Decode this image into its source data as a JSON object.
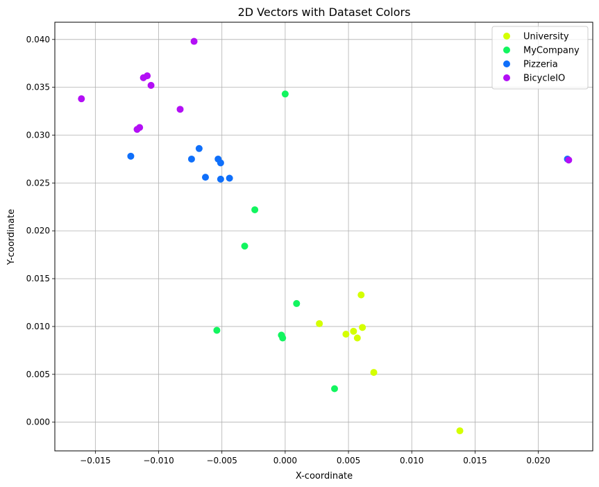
{
  "chart_data": {
    "type": "scatter",
    "title": "2D Vectors with Dataset Colors",
    "xlabel": "X-coordinate",
    "ylabel": "Y-coordinate",
    "xlim": [
      -0.0182,
      0.0243
    ],
    "ylim": [
      -0.003,
      0.0418
    ],
    "xticks": [
      {
        "value": -0.015,
        "label": "−0.015"
      },
      {
        "value": -0.01,
        "label": "−0.010"
      },
      {
        "value": -0.005,
        "label": "−0.005"
      },
      {
        "value": 0.0,
        "label": "0.000"
      },
      {
        "value": 0.005,
        "label": "0.005"
      },
      {
        "value": 0.01,
        "label": "0.010"
      },
      {
        "value": 0.015,
        "label": "0.015"
      },
      {
        "value": 0.02,
        "label": "0.020"
      }
    ],
    "yticks": [
      {
        "value": 0.0,
        "label": "0.000"
      },
      {
        "value": 0.005,
        "label": "0.005"
      },
      {
        "value": 0.01,
        "label": "0.010"
      },
      {
        "value": 0.015,
        "label": "0.015"
      },
      {
        "value": 0.02,
        "label": "0.020"
      },
      {
        "value": 0.025,
        "label": "0.025"
      },
      {
        "value": 0.03,
        "label": "0.030"
      },
      {
        "value": 0.035,
        "label": "0.035"
      },
      {
        "value": 0.04,
        "label": "0.040"
      }
    ],
    "grid": true,
    "legend_position": "top-right",
    "series": [
      {
        "name": "University",
        "color": "#d4ff00",
        "points": [
          [
            0.0027,
            0.0103
          ],
          [
            0.0048,
            0.0092
          ],
          [
            0.0054,
            0.0095
          ],
          [
            0.0057,
            0.0088
          ],
          [
            0.006,
            0.0133
          ],
          [
            0.0061,
            0.0099
          ],
          [
            0.007,
            0.0052
          ],
          [
            0.0138,
            -0.0009
          ]
        ]
      },
      {
        "name": "MyCompany",
        "color": "#12f55f",
        "points": [
          [
            0.0,
            0.0343
          ],
          [
            -0.0024,
            0.0222
          ],
          [
            -0.0032,
            0.0184
          ],
          [
            0.0009,
            0.0124
          ],
          [
            -0.0054,
            0.0096
          ],
          [
            -0.0003,
            0.0091
          ],
          [
            -0.0002,
            0.0088
          ],
          [
            0.0039,
            0.0035
          ]
        ]
      },
      {
        "name": "Pizzeria",
        "color": "#0f6ffa",
        "points": [
          [
            -0.0122,
            0.0278
          ],
          [
            -0.0068,
            0.0286
          ],
          [
            -0.0074,
            0.0275
          ],
          [
            -0.0053,
            0.0275
          ],
          [
            -0.0051,
            0.0271
          ],
          [
            -0.0063,
            0.0256
          ],
          [
            -0.0051,
            0.0254
          ],
          [
            -0.0044,
            0.0255
          ],
          [
            0.0223,
            0.0275
          ]
        ]
      },
      {
        "name": "BicycleIO",
        "color": "#b30ff5",
        "points": [
          [
            -0.0161,
            0.0338
          ],
          [
            -0.0072,
            0.0398
          ],
          [
            -0.0109,
            0.0362
          ],
          [
            -0.0112,
            0.036
          ],
          [
            -0.0106,
            0.0352
          ],
          [
            -0.0083,
            0.0327
          ],
          [
            -0.0115,
            0.0308
          ],
          [
            -0.0117,
            0.0306
          ],
          [
            0.0224,
            0.0274
          ]
        ]
      }
    ]
  }
}
